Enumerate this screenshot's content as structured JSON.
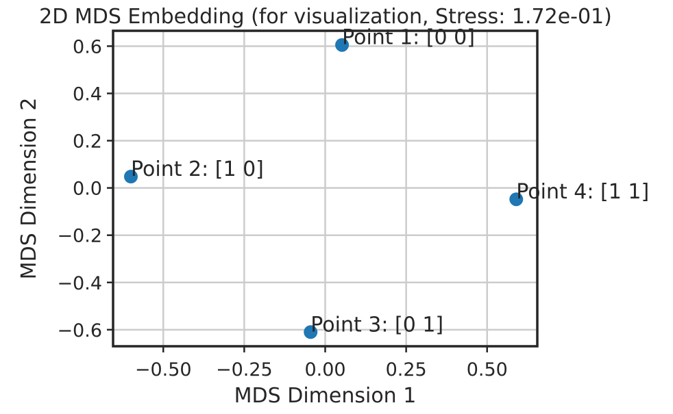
{
  "chart_data": {
    "type": "scatter",
    "title": "2D MDS Embedding (for visualization, Stress: 1.72e-01)",
    "xlabel": "MDS Dimension 1",
    "ylabel": "MDS Dimension 2",
    "xlim": [
      -0.655,
      0.655
    ],
    "ylim": [
      -0.67,
      0.665
    ],
    "grid": true,
    "marker_color": "#1f77b4",
    "x_ticks": [
      {
        "value": -0.5,
        "label": "−0.50"
      },
      {
        "value": -0.25,
        "label": "−0.25"
      },
      {
        "value": 0.0,
        "label": "0.00"
      },
      {
        "value": 0.25,
        "label": "0.25"
      },
      {
        "value": 0.5,
        "label": "0.50"
      }
    ],
    "y_ticks": [
      {
        "value": 0.6,
        "label": "0.6"
      },
      {
        "value": 0.4,
        "label": "0.4"
      },
      {
        "value": 0.2,
        "label": "0.2"
      },
      {
        "value": 0.0,
        "label": "0.0"
      },
      {
        "value": -0.2,
        "label": "−0.2"
      },
      {
        "value": -0.4,
        "label": "−0.4"
      },
      {
        "value": -0.6,
        "label": "−0.6"
      }
    ],
    "points": [
      {
        "label": "Point 1: [0 0]",
        "x": 0.052,
        "y": 0.605
      },
      {
        "label": "Point 2: [1 0]",
        "x": -0.6,
        "y": 0.048
      },
      {
        "label": "Point 3: [0 1]",
        "x": -0.045,
        "y": -0.61
      },
      {
        "label": "Point 4: [1 1]",
        "x": 0.59,
        "y": -0.048
      }
    ]
  }
}
